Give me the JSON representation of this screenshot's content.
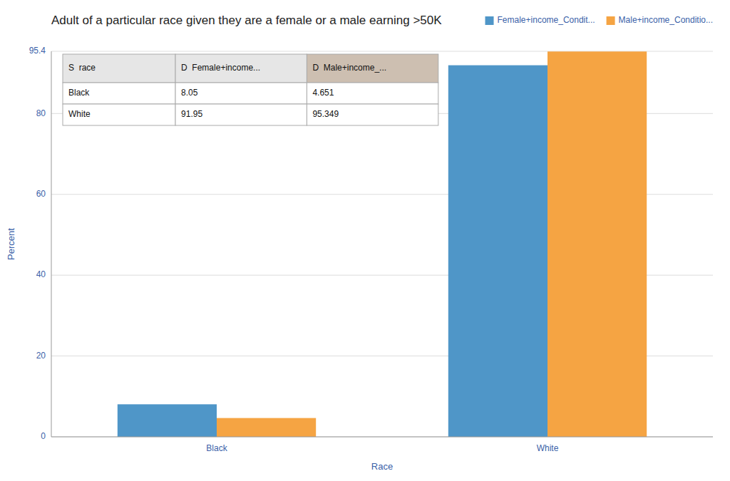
{
  "chart_data": {
    "type": "bar",
    "title": "Adult of a particular race given they are a female or a male earning >50K",
    "x_label": "Race",
    "y_label": "Percent",
    "categories": [
      "Black",
      "White"
    ],
    "series": [
      {
        "name": "Female+income_Condit...",
        "color": "#4F96C8",
        "values": [
          8.05,
          91.95
        ]
      },
      {
        "name": "Male+income_Conditio...",
        "color": "#F5A443",
        "values": [
          4.651,
          95.349
        ]
      }
    ],
    "ylim": [
      0,
      95.4
    ],
    "yticks": [
      0,
      20,
      40,
      60,
      80,
      95.4
    ],
    "grid": true,
    "legend": "upper right",
    "table": {
      "headers": [
        "S  race",
        "D  Female+income...",
        "D  Male+income_..."
      ],
      "rows": [
        [
          "Black",
          "8.05",
          "4.651"
        ],
        [
          "White",
          "91.95",
          "95.349"
        ]
      ]
    }
  }
}
